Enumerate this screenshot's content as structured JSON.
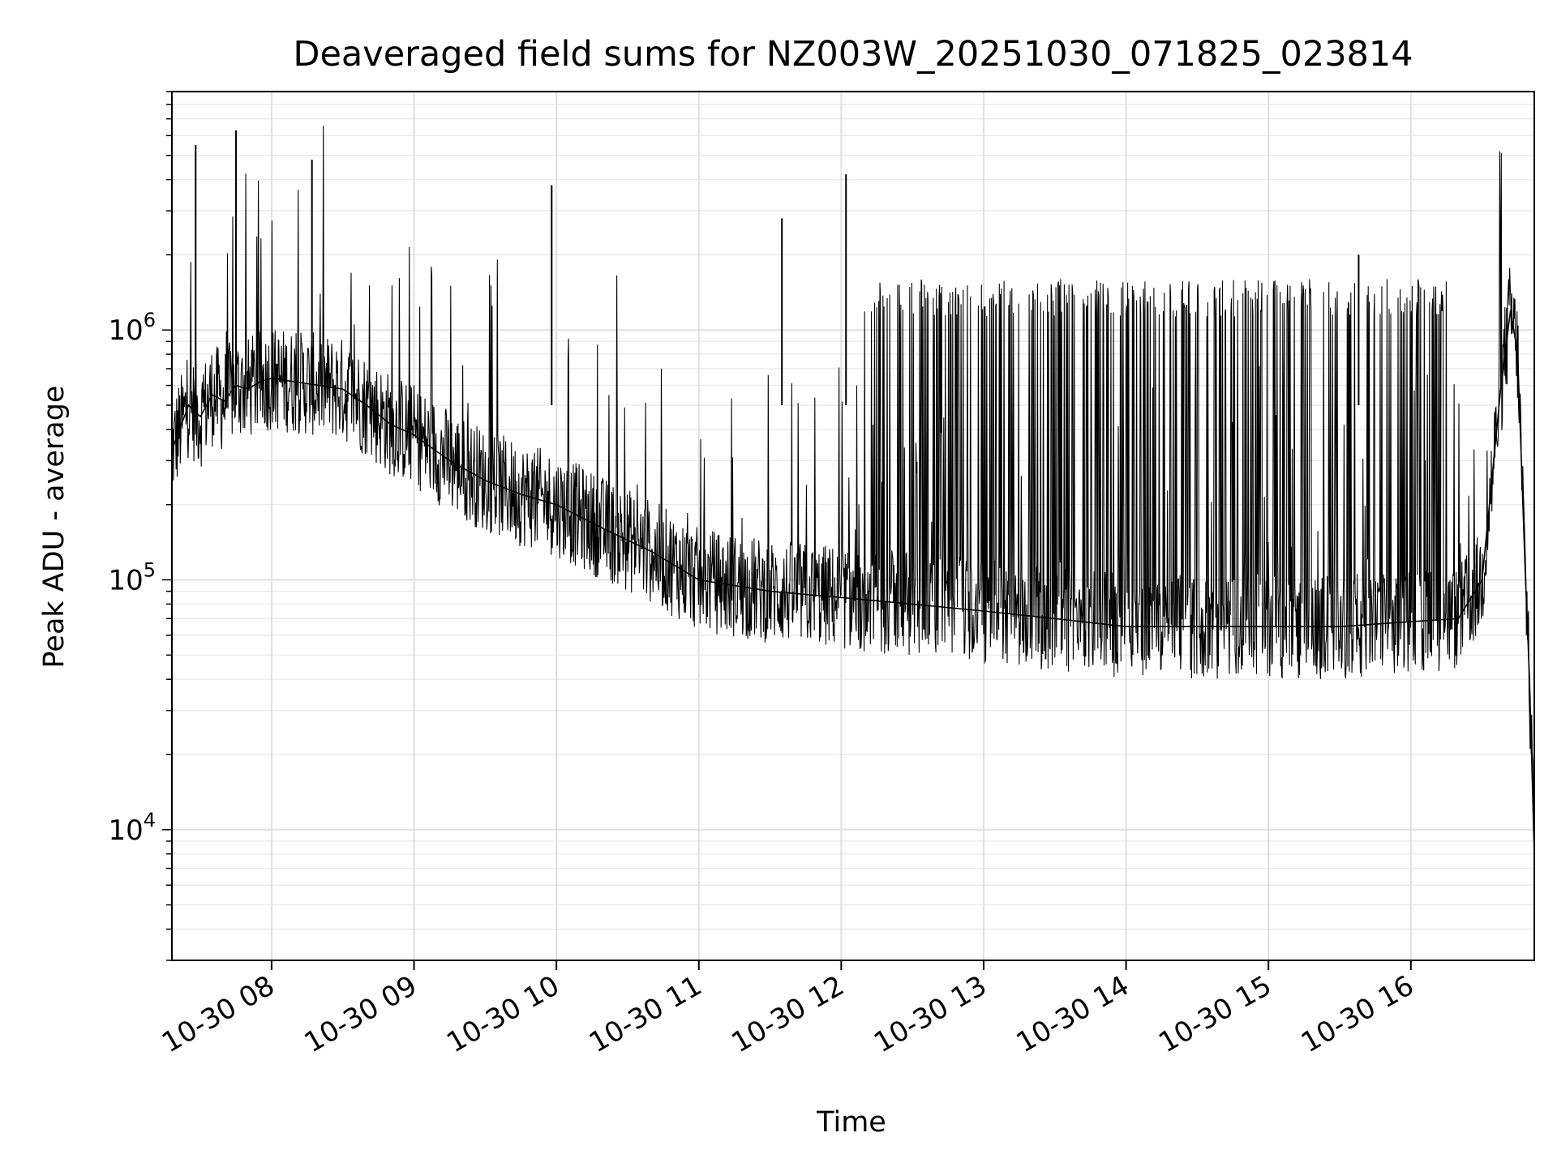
{
  "chart_data": {
    "type": "line",
    "title": "Deaveraged field sums for NZ003W_20251030_071825_023814",
    "xlabel": "Time",
    "ylabel": "Peak ADU - average",
    "yscale": "log",
    "grid": true,
    "xlim": [
      "2025-10-30 07:18",
      "2025-10-30 16:52"
    ],
    "ylim": [
      3000,
      9000000
    ],
    "x_ticks": [
      "10-30 08",
      "10-30 09",
      "10-30 10",
      "10-30 11",
      "10-30 12",
      "10-30 13",
      "10-30 14",
      "10-30 15",
      "10-30 16"
    ],
    "y_ticks": [
      {
        "value": 10000,
        "label": "10^4"
      },
      {
        "value": 100000,
        "label": "10^5"
      },
      {
        "value": 1000000,
        "label": "10^6"
      }
    ],
    "series": [
      {
        "color": "#000000",
        "x": [
          "2025-10-30 07:18",
          "2025-10-30 07:25",
          "2025-10-30 07:30",
          "2025-10-30 07:35",
          "2025-10-30 07:40",
          "2025-10-30 07:45",
          "2025-10-30 07:50",
          "2025-10-30 07:55",
          "2025-10-30 08:00",
          "2025-10-30 08:10",
          "2025-10-30 08:20",
          "2025-10-30 08:30",
          "2025-10-30 08:40",
          "2025-10-30 08:50",
          "2025-10-30 09:00",
          "2025-10-30 09:15",
          "2025-10-30 09:30",
          "2025-10-30 09:45",
          "2025-10-30 10:00",
          "2025-10-30 10:20",
          "2025-10-30 10:40",
          "2025-10-30 11:00",
          "2025-10-30 11:30",
          "2025-10-30 12:00",
          "2025-10-30 12:30",
          "2025-10-30 13:00",
          "2025-10-30 13:30",
          "2025-10-30 14:00",
          "2025-10-30 14:30",
          "2025-10-30 15:00",
          "2025-10-30 15:30",
          "2025-10-30 16:00",
          "2025-10-30 16:20",
          "2025-10-30 16:30",
          "2025-10-30 16:38",
          "2025-10-30 16:42",
          "2025-10-30 16:45",
          "2025-10-30 16:48",
          "2025-10-30 16:50",
          "2025-10-30 16:52"
        ],
        "y": [
          330000,
          500000,
          450000,
          550000,
          520000,
          600000,
          580000,
          620000,
          640000,
          620000,
          600000,
          580000,
          500000,
          420000,
          380000,
          300000,
          250000,
          220000,
          200000,
          160000,
          130000,
          100000,
          90000,
          85000,
          80000,
          75000,
          70000,
          65000,
          65000,
          65000,
          65000,
          68000,
          70000,
          100000,
          600000,
          1200000,
          800000,
          120000,
          40000,
          8000
        ]
      }
    ],
    "spikes": [
      {
        "x": "2025-10-30 07:28",
        "y": 5500000
      },
      {
        "x": "2025-10-30 07:45",
        "y": 6300000
      },
      {
        "x": "2025-10-30 08:17",
        "y": 4800000
      },
      {
        "x": "2025-10-30 09:58",
        "y": 3800000
      },
      {
        "x": "2025-10-30 11:35",
        "y": 2800000
      },
      {
        "x": "2025-10-30 12:02",
        "y": 4200000
      },
      {
        "x": "2025-10-30 15:38",
        "y": 2000000
      }
    ]
  }
}
